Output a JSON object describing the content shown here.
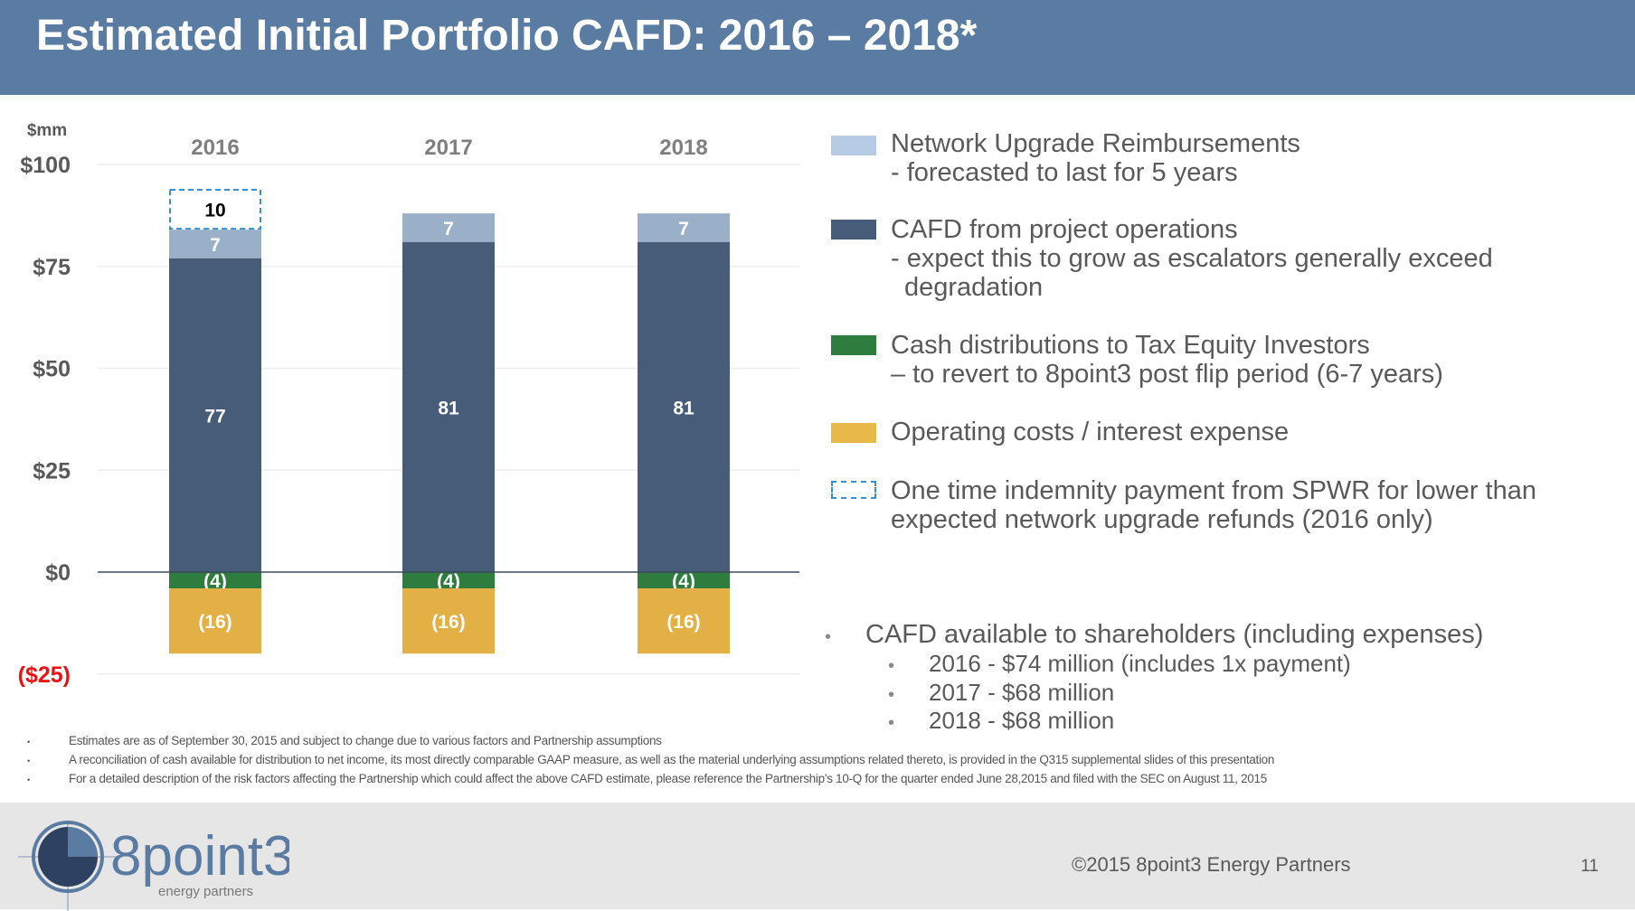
{
  "header": {
    "title": "Estimated Initial Portfolio CAFD:  2016 – 2018*"
  },
  "chart_data": {
    "type": "bar",
    "stacked": true,
    "title": "Estimated Initial Portfolio CAFD: 2016 – 2018*",
    "ylabel": "$mm",
    "categories": [
      "2016",
      "2017",
      "2018"
    ],
    "ylim": [
      -25,
      100
    ],
    "yticks": [
      {
        "v": 100,
        "label": "$100"
      },
      {
        "v": 75,
        "label": "$75"
      },
      {
        "v": 50,
        "label": "$50"
      },
      {
        "v": 25,
        "label": "$25"
      },
      {
        "v": 0,
        "label": "$0"
      },
      {
        "v": -25,
        "label": "($25)"
      }
    ],
    "series": [
      {
        "name": "CAFD from project operations",
        "color": "#475c78",
        "values": [
          77,
          81,
          81
        ],
        "labels": [
          "77",
          "81",
          "81"
        ]
      },
      {
        "name": "Network Upgrade Reimbursements",
        "color": "#9aafc8",
        "values": [
          7,
          7,
          7
        ],
        "labels": [
          "7",
          "7",
          "7"
        ]
      },
      {
        "name": "One time indemnity payment from SPWR",
        "color": "#3a8fd0",
        "dashed": true,
        "values": [
          10,
          0,
          0
        ],
        "labels": [
          "10",
          "",
          ""
        ]
      },
      {
        "name": "Cash distributions to Tax Equity Investors",
        "color": "#2f7d3e",
        "values": [
          -4,
          -4,
          -4
        ],
        "labels": [
          "(4)",
          "(4)",
          "(4)"
        ]
      },
      {
        "name": "Operating costs / interest expense",
        "color": "#e3b045",
        "values": [
          -16,
          -16,
          -16
        ],
        "labels": [
          "(16)",
          "(16)",
          "(16)"
        ]
      }
    ],
    "grid": true
  },
  "legend": [
    {
      "line1": "Network Upgrade Reimbursements",
      "line2": "- forecasted to last for 5 years",
      "color": "#b8cbe4"
    },
    {
      "line1": "CAFD from project operations",
      "line2": "- expect this to grow as escalators generally exceed",
      "line3": "degradation",
      "color": "#475c78"
    },
    {
      "line1": "Cash distributions to Tax Equity Investors",
      "line2": "– to revert to 8point3 post flip period (6-7 years)",
      "color": "#2f7d3e"
    },
    {
      "line1": "Operating costs / interest expense",
      "color": "#e8b84a"
    },
    {
      "line1": "One time indemnity payment from SPWR for lower than",
      "line2": "expected network upgrade refunds (2016 only)",
      "color": "#3a8fd0"
    }
  ],
  "summary": {
    "head": "CAFD available to shareholders (including expenses)",
    "items": [
      "2016 - $74 million (includes 1x payment)",
      "2017 - $68 million",
      "2018 - $68 million"
    ]
  },
  "notes": [
    "Estimates are as of September 30, 2015 and subject to change due to various factors and Partnership assumptions",
    "A reconciliation of cash available for distribution to net income, its most directly comparable GAAP measure, as well as the material underlying assumptions related thereto, is provided in the Q315 supplemental slides of this presentation",
    "For a detailed description of the risk factors affecting the Partnership which could affect the above CAFD estimate, please reference the Partnership’s 10-Q for the quarter ended June 28,2015 and filed with the SEC on August 11, 2015"
  ],
  "footer": {
    "logo_text": "8point3",
    "logo_sub": "energy partners",
    "copyright": "©2015 8point3 Energy Partners",
    "page": "11"
  }
}
